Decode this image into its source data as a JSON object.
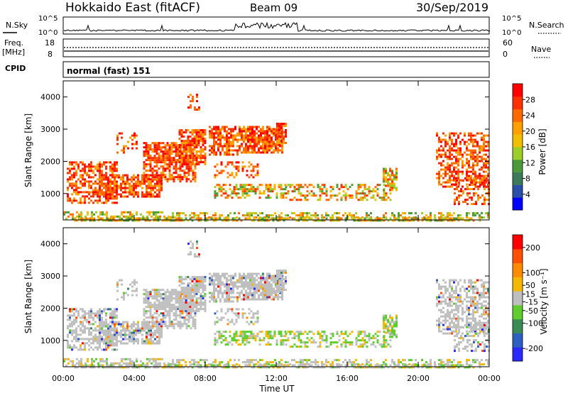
{
  "header": {
    "title": "Hokkaido East (fitACF)",
    "beam": "Beam 09",
    "date": "30/Sep/2019"
  },
  "housekeeping": {
    "nsky_label": "N.Sky",
    "nsky_ticks": [
      "10^5",
      "10^0"
    ],
    "nsearch_label": "N.Search",
    "nsearch_ticks": [
      "10^5",
      "10^0"
    ],
    "freq_label": "Freq.",
    "freq_unit": "[MHz]",
    "freq_ticks": [
      "18",
      "8"
    ],
    "nave_label": "Nave",
    "nave_ticks": [
      "60",
      "0"
    ],
    "cpid_label": "CPID",
    "cpid_value": "normal (fast) 151"
  },
  "colors": {
    "power_scale": [
      "#0000ff",
      "#2b4fa8",
      "#3d7a5a",
      "#4d9a3a",
      "#9ccd2a",
      "#f0c000",
      "#ff9f00",
      "#ff6a00",
      "#ff3000",
      "#ff0000"
    ],
    "velocity_scale": [
      "#2a2aff",
      "#2e5fbf",
      "#3a8a55",
      "#5fcc30",
      "#bfbfbf",
      "#f5b800",
      "#ff8c00",
      "#ff4f00",
      "#ff0000"
    ]
  },
  "chart_data": [
    {
      "type": "heatmap",
      "panel": "power",
      "ylabel": "Slant Range [km]",
      "y_ticks": [
        "4000",
        "3000",
        "2000",
        "1000"
      ],
      "ylim": [
        180,
        4500
      ],
      "x_ticks": [
        "00:00",
        "04:00",
        "08:00",
        "12:00",
        "16:00",
        "20:00",
        "00:00"
      ],
      "xlim_hours": [
        0,
        24
      ],
      "colorbar_label": "Power [dB]",
      "colorbar_ticks": [
        "28",
        "24",
        "20",
        "16",
        "12",
        "8",
        "4"
      ],
      "colorbar_range": [
        0,
        32
      ]
    },
    {
      "type": "heatmap",
      "panel": "velocity",
      "ylabel": "Slant Range [km]",
      "y_ticks": [
        "4000",
        "3000",
        "2000",
        "1000"
      ],
      "ylim": [
        180,
        4500
      ],
      "x_ticks": [
        "00:00",
        "04:00",
        "08:00",
        "12:00",
        "16:00",
        "20:00",
        "00:00"
      ],
      "xlim_hours": [
        0,
        24
      ],
      "xlabel": "Time UT",
      "colorbar_label": "Velocity [m s⁻¹]",
      "colorbar_ticks": [
        "200",
        "100",
        "50",
        "15",
        "-15",
        "-50",
        "-100",
        "-200"
      ],
      "colorbar_range": [
        -250,
        250
      ]
    }
  ]
}
